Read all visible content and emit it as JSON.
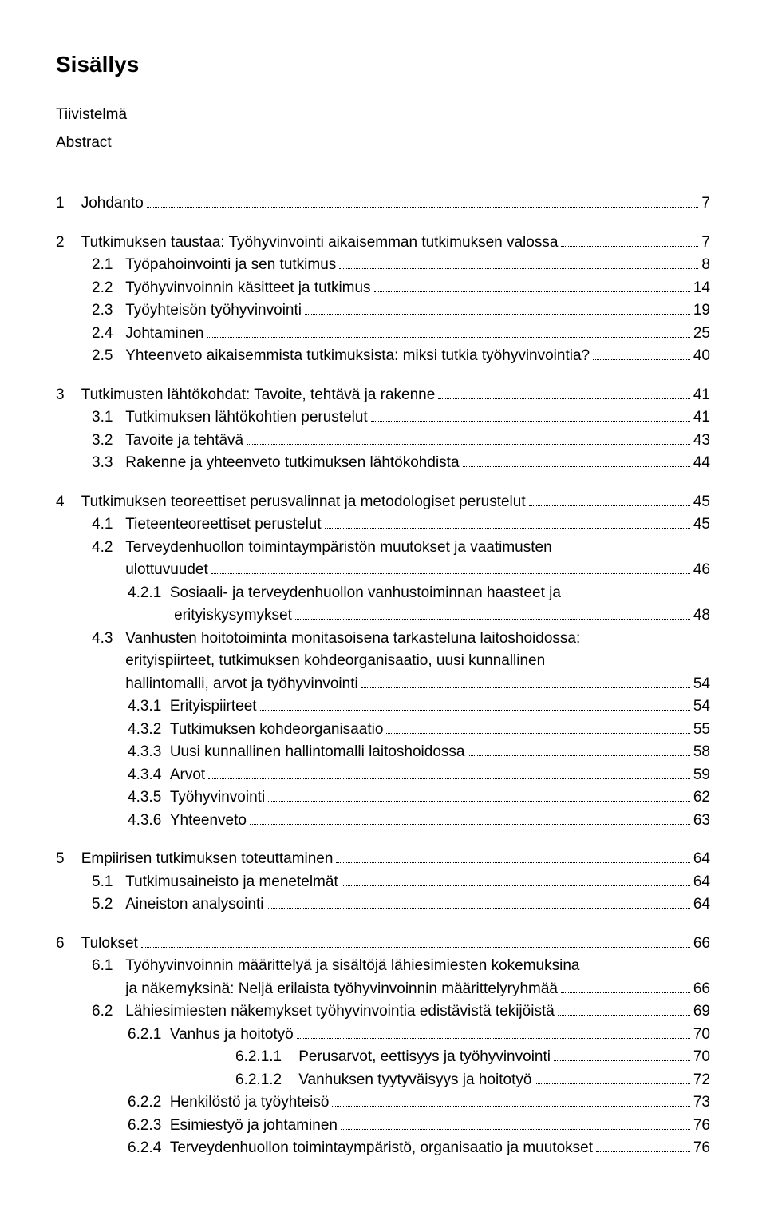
{
  "title": "Sisällys",
  "front": [
    "Tiivistelmä",
    "Abstract"
  ],
  "entries": [
    {
      "type": "gap"
    },
    {
      "indent": 0,
      "num": "1",
      "label": "Johdanto",
      "page": "7",
      "numpad": "    "
    },
    {
      "type": "gap"
    },
    {
      "indent": 0,
      "num": "2",
      "label": "Tutkimuksen taustaa: Työhyvinvointi aikaisemman tutkimuksen valossa",
      "page": "7",
      "numpad": "    "
    },
    {
      "indent": 1,
      "num": "2.1",
      "label": "Työpahoinvointi ja sen tutkimus",
      "page": "8",
      "numpad": "   "
    },
    {
      "indent": 1,
      "num": "2.2",
      "label": "Työhyvinvoinnin käsitteet ja tutkimus",
      "page": "14",
      "numpad": "   "
    },
    {
      "indent": 1,
      "num": "2.3",
      "label": "Työyhteisön työhyvinvointi",
      "page": "19",
      "numpad": "   "
    },
    {
      "indent": 1,
      "num": "2.4",
      "label": "Johtaminen",
      "page": "25",
      "numpad": "   "
    },
    {
      "indent": 1,
      "num": "2.5",
      "label": "Yhteenveto aikaisemmista tutkimuksista: miksi tutkia työhyvinvointia?",
      "page": "40",
      "numpad": "   "
    },
    {
      "type": "gap"
    },
    {
      "indent": 0,
      "num": "3",
      "label": "Tutkimusten lähtökohdat: Tavoite, tehtävä ja rakenne",
      "page": "41",
      "numpad": "    "
    },
    {
      "indent": 1,
      "num": "3.1",
      "label": "Tutkimuksen lähtökohtien perustelut",
      "page": "41",
      "numpad": "   "
    },
    {
      "indent": 1,
      "num": "3.2",
      "label": "Tavoite ja tehtävä",
      "page": "43",
      "numpad": "   "
    },
    {
      "indent": 1,
      "num": "3.3",
      "label": "Rakenne ja yhteenveto tutkimuksen lähtökohdista",
      "page": "44",
      "numpad": "   "
    },
    {
      "type": "gap"
    },
    {
      "indent": 0,
      "num": "4",
      "label": "Tutkimuksen teoreettiset perusvalinnat ja metodologiset perustelut",
      "page": "45",
      "numpad": "    "
    },
    {
      "indent": 1,
      "num": "4.1",
      "label": "Tieteenteoreettiset perustelut",
      "page": "45",
      "numpad": "   "
    },
    {
      "indent": 1,
      "num": "4.2",
      "label": "Terveydenhuollon toimintaympäristön muutokset ja vaatimusten",
      "page": null,
      "numpad": "   "
    },
    {
      "indent": 1,
      "cont": true,
      "contpad": "        ",
      "label": "ulottuvuudet",
      "page": "46"
    },
    {
      "indent": 2,
      "num": "4.2.1",
      "label": "Sosiaali- ja terveydenhuollon vanhustoiminnan haasteet ja",
      "page": null,
      "numpad": "  "
    },
    {
      "indent": 2,
      "cont": true,
      "contpad": "           ",
      "label": "erityiskysymykset",
      "page": "48"
    },
    {
      "indent": 1,
      "num": "4.3",
      "label": "Vanhusten hoitotoiminta monitasoisena tarkasteluna laitoshoidossa:",
      "page": null,
      "numpad": "   "
    },
    {
      "indent": 1,
      "cont": true,
      "contpad": "        ",
      "label": "erityispiirteet, tutkimuksen kohdeorganisaatio, uusi kunnallinen",
      "page": null
    },
    {
      "indent": 1,
      "cont": true,
      "contpad": "        ",
      "label": "hallintomalli, arvot ja työhyvinvointi",
      "page": "54"
    },
    {
      "indent": 2,
      "num": "4.3.1",
      "label": "Erityispiirteet",
      "page": "54",
      "numpad": "  "
    },
    {
      "indent": 2,
      "num": "4.3.2",
      "label": "Tutkimuksen kohdeorganisaatio",
      "page": "55",
      "numpad": "  "
    },
    {
      "indent": 2,
      "num": "4.3.3",
      "label": "Uusi kunnallinen hallintomalli laitoshoidossa",
      "page": "58",
      "numpad": "  "
    },
    {
      "indent": 2,
      "num": "4.3.4",
      "label": "Arvot",
      "page": "59",
      "numpad": "  "
    },
    {
      "indent": 2,
      "num": "4.3.5",
      "label": "Työhyvinvointi",
      "page": "62",
      "numpad": "  "
    },
    {
      "indent": 2,
      "num": "4.3.6",
      "label": "Yhteenveto",
      "page": "63",
      "numpad": "  "
    },
    {
      "type": "gap"
    },
    {
      "indent": 0,
      "num": "5",
      "label": "Empiirisen tutkimuksen toteuttaminen",
      "page": "64",
      "numpad": "    "
    },
    {
      "indent": 1,
      "num": "5.1",
      "label": "Tutkimusaineisto ja menetelmät",
      "page": "64",
      "numpad": "   "
    },
    {
      "indent": 1,
      "num": "5.2",
      "label": "Aineiston analysointi",
      "page": "64",
      "numpad": "   "
    },
    {
      "type": "gap"
    },
    {
      "indent": 0,
      "num": "6",
      "label": "Tulokset",
      "page": "66",
      "numpad": "    "
    },
    {
      "indent": 1,
      "num": "6.1",
      "label": "Työhyvinvoinnin määrittelyä ja sisältöjä lähiesimiesten kokemuksina",
      "page": null,
      "numpad": "   "
    },
    {
      "indent": 1,
      "cont": true,
      "contpad": "        ",
      "label": "ja näkemyksinä: Neljä erilaista työhyvinvoinnin määrittelyryhmää",
      "page": "66"
    },
    {
      "indent": 1,
      "num": "6.2",
      "label": "Lähiesimiesten näkemykset työhyvinvointia edistävistä tekijöistä",
      "page": "69",
      "numpad": "   "
    },
    {
      "indent": 2,
      "num": "6.2.1",
      "label": "Vanhus ja hoitotyö",
      "page": "70",
      "numpad": "  "
    },
    {
      "indent": 4,
      "num": "6.2.1.1",
      "label": "Perusarvot, eettisyys ja työhyvinvointi",
      "page": "70",
      "numpad": "    "
    },
    {
      "indent": 4,
      "num": "6.2.1.2",
      "label": "Vanhuksen tyytyväisyys ja hoitotyö",
      "page": "72",
      "numpad": "    "
    },
    {
      "indent": 2,
      "num": "6.2.2",
      "label": "Henkilöstö ja työyhteisö",
      "page": "73",
      "numpad": "  "
    },
    {
      "indent": 2,
      "num": "6.2.3",
      "label": "Esimiestyö ja johtaminen",
      "page": "76",
      "numpad": "  "
    },
    {
      "indent": 2,
      "num": "6.2.4",
      "label": "Terveydenhuollon toimintaympäristö, organisaatio ja muutokset",
      "page": "76",
      "numpad": "  "
    }
  ]
}
